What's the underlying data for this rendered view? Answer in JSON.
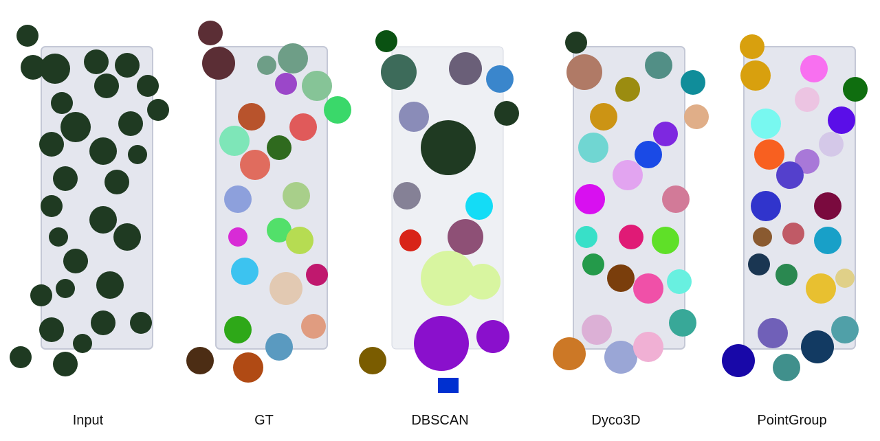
{
  "figure": {
    "panels": [
      {
        "id": "input",
        "label": "Input"
      },
      {
        "id": "gt",
        "label": "GT"
      },
      {
        "id": "dbscan",
        "label": "DBSCAN"
      },
      {
        "id": "dyco3d",
        "label": "Dyco3D"
      },
      {
        "id": "pointgroup",
        "label": "PointGroup"
      }
    ]
  },
  "colors": {
    "leaf_dark": "#1f3a22",
    "tray": "#e4e6ee",
    "gt": [
      "#5b2e35",
      "#6e9e87",
      "#9b47c9",
      "#86c497",
      "#3ad86a",
      "#b8532c",
      "#e05a5a",
      "#7ee6b8",
      "#2f6a1e",
      "#e06c5e",
      "#8da0dc",
      "#a8cf8a",
      "#d82bd6",
      "#52e06a",
      "#b6dc52",
      "#3cc3f0",
      "#c0186e",
      "#e2c9b2",
      "#2ea818",
      "#5a9ac0",
      "#4c2d14",
      "#b04a14",
      "#e09c80"
    ],
    "dbscan": [
      "#0a5212",
      "#3d6b5a",
      "#6a5f78",
      "#3a86cc",
      "#8a8cb8",
      "#858196",
      "#14dcf6",
      "#8e5076",
      "#d82418",
      "#d8f5a0",
      "#8a10cc",
      "#7a5c00",
      "#0030d0"
    ],
    "dyco3d": [
      "#b07a66",
      "#528f86",
      "#108d9a",
      "#9b8c10",
      "#cc9414",
      "#e0ae88",
      "#7e28e0",
      "#70d6d2",
      "#1a4ae6",
      "#e2a4f0",
      "#d810f0",
      "#d27a98",
      "#38e0c8",
      "#e01a76",
      "#5fe028",
      "#249a4a",
      "#7a3e0c",
      "#f050a8",
      "#68f0e0",
      "#dcb0d6",
      "#38a898",
      "#cc7826",
      "#9aa6d6",
      "#f0b0d4"
    ],
    "pointgroup": [
      "#d8a00e",
      "#f870f0",
      "#0f6e0f",
      "#ecc4e2",
      "#5a0ee8",
      "#78f8f0",
      "#d4c8e8",
      "#f86020",
      "#a878d8",
      "#5440cc",
      "#3034cc",
      "#7a0a3e",
      "#8a5a30",
      "#c05a66",
      "#18a0c8",
      "#1a3652",
      "#2a8850",
      "#e8c030",
      "#e0d088",
      "#7060b8",
      "#50a0a8",
      "#123a62",
      "#1808a8",
      "#40908c"
    ]
  }
}
